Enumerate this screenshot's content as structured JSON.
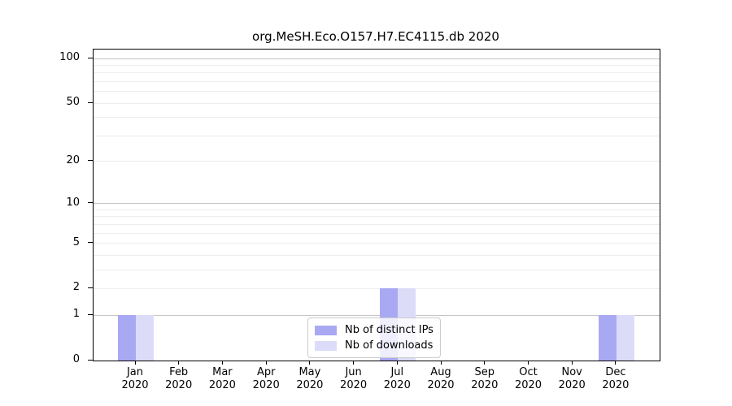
{
  "title": "org.MeSH.Eco.O157.H7.EC4115.db 2020",
  "chart_data": {
    "type": "bar",
    "title": "org.MeSH.Eco.O157.H7.EC4115.db 2020",
    "x_months": [
      "Jan",
      "Feb",
      "Mar",
      "Apr",
      "May",
      "Jun",
      "Jul",
      "Aug",
      "Sep",
      "Oct",
      "Nov",
      "Dec"
    ],
    "x_year": "2020",
    "categories": [
      "Jan 2020",
      "Feb 2020",
      "Mar 2020",
      "Apr 2020",
      "May 2020",
      "Jun 2020",
      "Jul 2020",
      "Aug 2020",
      "Sep 2020",
      "Oct 2020",
      "Nov 2020",
      "Dec 2020"
    ],
    "series": [
      {
        "name": "Nb of distinct IPs",
        "color": "#a9a9f3",
        "values": [
          1,
          0,
          0,
          0,
          0,
          0,
          2,
          0,
          0,
          0,
          0,
          1
        ]
      },
      {
        "name": "Nb of downloads",
        "color": "#dcdcf9",
        "values": [
          1,
          0,
          0,
          0,
          0,
          0,
          2,
          0,
          0,
          0,
          0,
          1
        ]
      }
    ],
    "yscale": "log1p",
    "ylim": [
      0,
      114
    ],
    "y_tick_values": [
      0,
      1,
      2,
      5,
      10,
      20,
      50,
      100
    ],
    "y_major_gridlines": [
      1,
      10,
      100
    ],
    "y_minor_gridlines": [
      2,
      3,
      4,
      5,
      6,
      7,
      8,
      9,
      20,
      30,
      40,
      50,
      60,
      70,
      80,
      90
    ],
    "grid": "horizontal",
    "legend_position": "lower center",
    "xlabel": "",
    "ylabel": ""
  }
}
